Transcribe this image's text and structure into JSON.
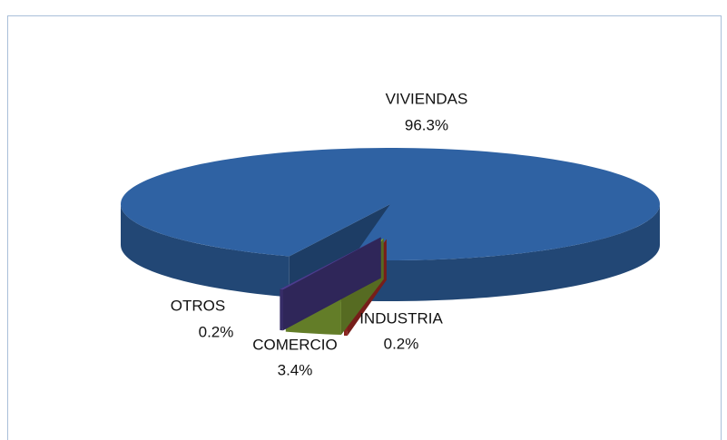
{
  "chart_data": {
    "type": "pie",
    "categories": [
      "VIVIENDAS",
      "INDUSTRIA",
      "COMERCIO",
      "OTROS"
    ],
    "values": [
      96.3,
      0.2,
      3.4,
      0.2
    ],
    "value_labels": [
      "96.3%",
      "0.2%",
      "3.4%",
      "0.2%"
    ],
    "colors": [
      "#2f62a3",
      "#c0302a",
      "#8aad37",
      "#4b3d8f"
    ]
  }
}
